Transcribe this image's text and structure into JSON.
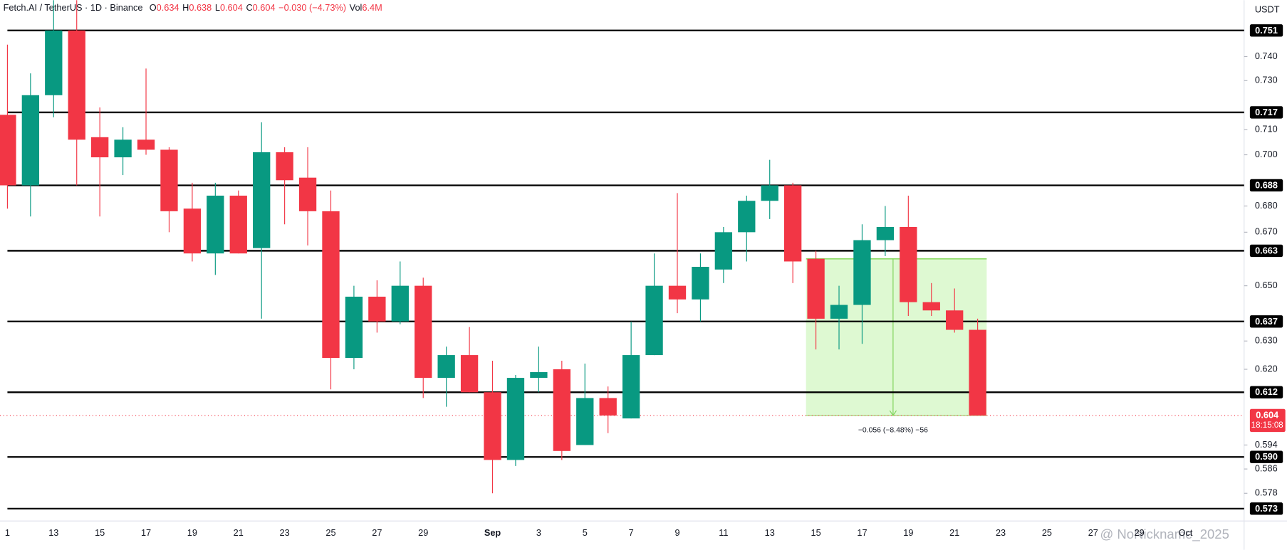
{
  "chart_data": {
    "type": "candlestick",
    "symbol": "Fetch.AI / TetherUS · 1D · Binance",
    "ohlc_letters": [
      "O",
      "H",
      "L",
      "C"
    ],
    "change": "−0.030 (−4.73%)",
    "volume_letter": "Vol",
    "volume": "6.4M",
    "currency": "USDT",
    "log_scale": true,
    "ylim": [
      0.569,
      0.764
    ],
    "yticks": [
      0.578,
      0.586,
      0.594,
      {
        "value": 0.62,
        "label": "0.620"
      },
      {
        "value": 0.63,
        "label": "0.630"
      },
      {
        "value": 0.65,
        "label": "0.650"
      },
      {
        "value": 0.67,
        "label": "0.670"
      },
      {
        "value": 0.68,
        "label": "0.680"
      },
      {
        "value": 0.7,
        "label": "0.700"
      },
      {
        "value": 0.71,
        "label": "0.710"
      },
      {
        "value": 0.73,
        "label": "0.730"
      },
      {
        "value": 0.74,
        "label": "0.740"
      }
    ],
    "levels": [
      0.751,
      0.717,
      0.688,
      0.663,
      0.637,
      0.612,
      {
        "value": 0.59,
        "label": "0.590"
      },
      0.573
    ],
    "countdown": "18:15:08",
    "up_color": "#089981",
    "down_color": "#f23645",
    "categories": [
      "1",
      null,
      "13",
      null,
      "15",
      null,
      "17",
      null,
      "19",
      null,
      "21",
      null,
      "23",
      null,
      "25",
      null,
      "27",
      null,
      "29",
      null,
      null,
      "Sep",
      null,
      "3",
      null,
      "5",
      null,
      "7",
      null,
      "9",
      null,
      "11",
      null,
      "13",
      null,
      "15",
      null,
      "17",
      null,
      "19",
      null,
      "21",
      null
    ],
    "future_categories": [
      "23",
      null,
      "25",
      null,
      "27",
      null,
      "29",
      null,
      "Oct"
    ],
    "open": [
      0.716,
      0.688,
      0.724,
      0.751,
      0.707,
      0.699,
      0.706,
      0.702,
      0.679,
      0.662,
      0.684,
      0.664,
      0.701,
      0.691,
      0.678,
      0.624,
      0.646,
      0.637,
      0.65,
      0.617,
      0.625,
      0.612,
      0.589,
      0.617,
      0.62,
      0.594,
      0.61,
      0.603,
      0.625,
      0.65,
      0.645,
      0.656,
      0.67,
      0.682,
      0.688,
      0.66,
      0.638,
      0.643,
      0.667,
      0.672,
      0.644,
      0.641,
      0.634
    ],
    "high": [
      0.745,
      0.733,
      0.764,
      0.764,
      0.719,
      0.711,
      0.735,
      0.703,
      0.689,
      0.689,
      0.686,
      0.713,
      0.703,
      0.703,
      0.686,
      0.65,
      0.652,
      0.659,
      0.653,
      0.628,
      0.635,
      0.623,
      0.618,
      0.628,
      0.623,
      0.622,
      0.614,
      0.637,
      0.662,
      0.685,
      0.662,
      0.672,
      0.684,
      0.698,
      0.689,
      0.663,
      0.65,
      0.673,
      0.68,
      0.684,
      0.651,
      0.649,
      0.638
    ],
    "low": [
      0.679,
      0.676,
      0.715,
      0.688,
      0.676,
      0.692,
      0.7,
      0.67,
      0.659,
      0.654,
      0.662,
      0.638,
      0.673,
      0.665,
      0.613,
      0.62,
      0.633,
      0.636,
      0.61,
      0.607,
      0.612,
      0.578,
      0.587,
      0.612,
      0.589,
      0.594,
      0.598,
      0.603,
      0.625,
      0.64,
      0.637,
      0.651,
      0.659,
      0.675,
      0.651,
      0.627,
      0.627,
      0.629,
      0.661,
      0.639,
      0.639,
      0.633,
      0.604
    ],
    "close": [
      0.688,
      0.724,
      0.751,
      0.706,
      0.699,
      0.706,
      0.702,
      0.678,
      0.662,
      0.684,
      0.662,
      0.701,
      0.69,
      0.678,
      0.624,
      0.646,
      0.637,
      0.65,
      0.617,
      0.625,
      0.612,
      0.589,
      0.617,
      0.619,
      0.592,
      0.61,
      0.604,
      0.625,
      0.65,
      0.645,
      0.657,
      0.67,
      0.682,
      0.688,
      0.659,
      0.638,
      0.643,
      0.667,
      0.672,
      0.644,
      0.641,
      0.634,
      0.604
    ],
    "measure": {
      "from": 0.66,
      "to": 0.604,
      "label": "−0.056 (−8.48%) −56",
      "color": "#c8f5b4"
    },
    "watermark": "@ NoNickname_2025"
  }
}
